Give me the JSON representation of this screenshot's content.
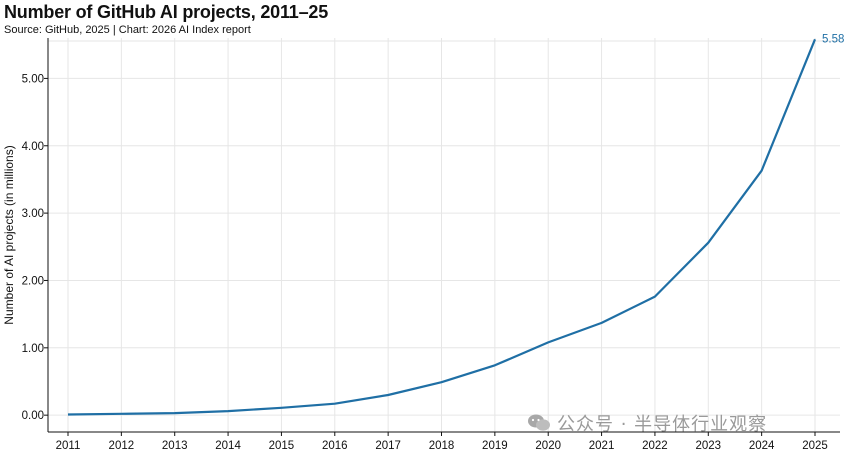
{
  "title": "Number of GitHub AI projects, 2011–25",
  "source": "Source: GitHub, 2025 | Chart: 2026 AI Index report",
  "watermark": "公众号 · 半导体行业观察",
  "colors": {
    "line": "#1f6fa5",
    "grid": "#e6e6e6",
    "axis": "#111111"
  },
  "chart_data": {
    "type": "line",
    "title": "Number of GitHub AI projects, 2011–25",
    "xlabel": "",
    "ylabel": "Number of AI projects (in millions)",
    "ylim": [
      0,
      5.6
    ],
    "yticks": [
      "0.00",
      "1.00",
      "2.00",
      "3.00",
      "4.00",
      "5.00"
    ],
    "ytick_values": [
      0,
      1,
      2,
      3,
      4,
      5
    ],
    "grid": true,
    "x": [
      "2011",
      "2012",
      "2013",
      "2014",
      "2015",
      "2016",
      "2017",
      "2018",
      "2019",
      "2020",
      "2021",
      "2022",
      "2023",
      "2024",
      "2025"
    ],
    "series": [
      {
        "name": "GitHub AI projects",
        "values": [
          0.01,
          0.02,
          0.03,
          0.06,
          0.11,
          0.17,
          0.3,
          0.49,
          0.74,
          1.08,
          1.37,
          1.76,
          2.56,
          3.63,
          5.58
        ]
      }
    ],
    "end_label": "5.58"
  }
}
